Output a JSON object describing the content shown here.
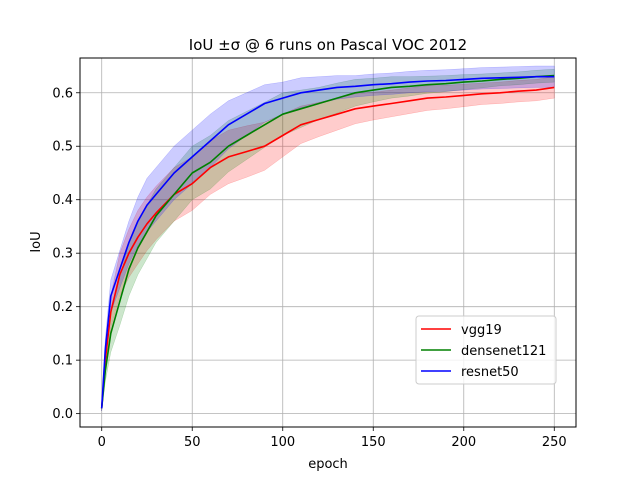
{
  "chart_data": {
    "type": "line",
    "title": "IoU ±σ @ 6 runs on Pascal VOC 2012",
    "xlabel": "epoch",
    "ylabel": "IoU",
    "xlim": [
      -12,
      262
    ],
    "ylim": [
      -0.025,
      0.665
    ],
    "xticks": [
      0,
      50,
      100,
      150,
      200,
      250
    ],
    "yticks": [
      0.0,
      0.1,
      0.2,
      0.3,
      0.4,
      0.5,
      0.6
    ],
    "grid": true,
    "legend_position": "lower-right",
    "shaded_band": "±σ",
    "series": [
      {
        "name": "vgg19",
        "color": "#ff0000",
        "band_color": "#ff0000",
        "x": [
          0,
          2,
          5,
          10,
          15,
          20,
          25,
          30,
          40,
          50,
          60,
          70,
          80,
          90,
          100,
          110,
          120,
          130,
          140,
          150,
          160,
          170,
          180,
          190,
          200,
          210,
          220,
          230,
          240,
          250
        ],
        "mean": [
          0.01,
          0.1,
          0.19,
          0.26,
          0.3,
          0.33,
          0.355,
          0.375,
          0.41,
          0.43,
          0.46,
          0.48,
          0.49,
          0.5,
          0.52,
          0.54,
          0.55,
          0.56,
          0.57,
          0.575,
          0.58,
          0.585,
          0.59,
          0.592,
          0.595,
          0.598,
          0.6,
          0.603,
          0.605,
          0.61
        ],
        "sigma": [
          0.005,
          0.02,
          0.03,
          0.04,
          0.045,
          0.05,
          0.05,
          0.05,
          0.05,
          0.05,
          0.05,
          0.05,
          0.048,
          0.045,
          0.04,
          0.035,
          0.032,
          0.03,
          0.028,
          0.026,
          0.025,
          0.024,
          0.023,
          0.022,
          0.021,
          0.02,
          0.02,
          0.02,
          0.02,
          0.02
        ]
      },
      {
        "name": "densenet121",
        "color": "#008000",
        "band_color": "#008000",
        "x": [
          0,
          2,
          5,
          10,
          15,
          20,
          25,
          30,
          40,
          50,
          60,
          70,
          80,
          90,
          100,
          110,
          120,
          130,
          140,
          150,
          160,
          170,
          180,
          190,
          200,
          210,
          220,
          230,
          240,
          250
        ],
        "mean": [
          0.01,
          0.08,
          0.15,
          0.21,
          0.27,
          0.31,
          0.34,
          0.37,
          0.41,
          0.45,
          0.47,
          0.5,
          0.52,
          0.54,
          0.56,
          0.57,
          0.58,
          0.59,
          0.6,
          0.605,
          0.61,
          0.612,
          0.615,
          0.617,
          0.62,
          0.622,
          0.625,
          0.627,
          0.63,
          0.632
        ],
        "sigma": [
          0.005,
          0.02,
          0.035,
          0.045,
          0.05,
          0.05,
          0.05,
          0.05,
          0.05,
          0.05,
          0.05,
          0.048,
          0.045,
          0.042,
          0.04,
          0.035,
          0.03,
          0.028,
          0.025,
          0.022,
          0.02,
          0.018,
          0.016,
          0.015,
          0.014,
          0.013,
          0.012,
          0.012,
          0.012,
          0.012
        ]
      },
      {
        "name": "resnet50",
        "color": "#0000ff",
        "band_color": "#0000ff",
        "x": [
          0,
          2,
          5,
          10,
          15,
          20,
          25,
          30,
          40,
          50,
          60,
          70,
          80,
          90,
          100,
          110,
          120,
          130,
          140,
          150,
          160,
          170,
          180,
          190,
          200,
          210,
          220,
          230,
          240,
          250
        ],
        "mean": [
          0.01,
          0.12,
          0.22,
          0.27,
          0.32,
          0.36,
          0.39,
          0.41,
          0.45,
          0.48,
          0.51,
          0.54,
          0.56,
          0.58,
          0.59,
          0.6,
          0.605,
          0.61,
          0.612,
          0.615,
          0.617,
          0.62,
          0.622,
          0.623,
          0.625,
          0.627,
          0.628,
          0.629,
          0.63,
          0.63
        ],
        "sigma": [
          0.005,
          0.02,
          0.03,
          0.035,
          0.04,
          0.045,
          0.05,
          0.05,
          0.05,
          0.05,
          0.05,
          0.045,
          0.04,
          0.035,
          0.03,
          0.028,
          0.025,
          0.022,
          0.02,
          0.02,
          0.02,
          0.02,
          0.02,
          0.02,
          0.02,
          0.02,
          0.02,
          0.02,
          0.02,
          0.02
        ]
      }
    ]
  }
}
